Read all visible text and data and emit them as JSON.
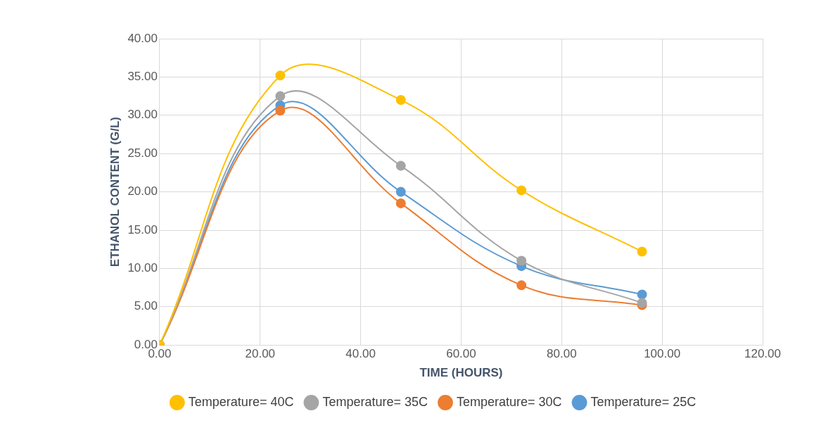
{
  "chart_data": {
    "type": "line",
    "xlabel": "TIME (HOURS)",
    "ylabel": "ETHANOL CONTENT (G/L)",
    "x": [
      0,
      24,
      48,
      72,
      96
    ],
    "series": [
      {
        "name": "Temperature= 25C",
        "color": "#5b9bd5",
        "values": [
          0,
          31.3,
          20.0,
          10.3,
          6.6
        ]
      },
      {
        "name": "Temperature= 30C",
        "color": "#ed7d31",
        "values": [
          0,
          30.6,
          18.5,
          7.8,
          5.2
        ]
      },
      {
        "name": "Temperature= 35C",
        "color": "#a5a5a5",
        "values": [
          0,
          32.5,
          23.4,
          11.0,
          5.5
        ]
      },
      {
        "name": "Temperature= 40C",
        "color": "#ffc000",
        "values": [
          0,
          35.2,
          32.0,
          20.2,
          12.2
        ]
      }
    ],
    "xlim": [
      0,
      120
    ],
    "xticks": [
      {
        "value": 0,
        "label": "0.00"
      },
      {
        "value": 20,
        "label": "20.00"
      },
      {
        "value": 40,
        "label": "40.00"
      },
      {
        "value": 60,
        "label": "60.00"
      },
      {
        "value": 80,
        "label": "80.00"
      },
      {
        "value": 100,
        "label": "100.00"
      },
      {
        "value": 120,
        "label": "120.00"
      }
    ],
    "ylim": [
      0,
      40
    ],
    "yticks": [
      {
        "value": 0,
        "label": "0.00"
      },
      {
        "value": 5,
        "label": "5.00"
      },
      {
        "value": 10,
        "label": "10.00"
      },
      {
        "value": 15,
        "label": "15.00"
      },
      {
        "value": 20,
        "label": "20.00"
      },
      {
        "value": 25,
        "label": "25.00"
      },
      {
        "value": 30,
        "label": "30.00"
      },
      {
        "value": 35,
        "label": "35.00"
      },
      {
        "value": 40,
        "label": "40.00"
      }
    ],
    "grid": true,
    "legend": "bottom",
    "marker": "circle",
    "line_style": "solid"
  }
}
